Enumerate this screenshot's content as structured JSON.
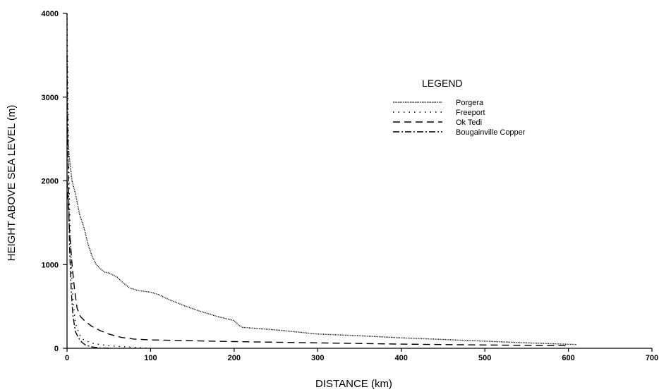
{
  "chart_data": {
    "type": "line",
    "title": "",
    "xlabel": "DISTANCE (km)",
    "ylabel": "HEIGHT ABOVE SEA LEVEL (m)",
    "xlim": [
      0,
      700
    ],
    "ylim": [
      0,
      4000
    ],
    "x_ticks": [
      0,
      100,
      200,
      300,
      400,
      500,
      600,
      700
    ],
    "y_ticks": [
      0,
      1000,
      2000,
      3000,
      4000
    ],
    "grid": false,
    "legend": {
      "title": "LEGEND",
      "placement": "top-right"
    },
    "series": [
      {
        "name": "Porgera",
        "dash": "1.2 1.2",
        "x": [
          0,
          1,
          3,
          6,
          10,
          15,
          20,
          25,
          30,
          35,
          40,
          45,
          50,
          60,
          65,
          70,
          75,
          85,
          100,
          110,
          120,
          140,
          160,
          180,
          200,
          205,
          210,
          250,
          300,
          350,
          400,
          450,
          500,
          550,
          610
        ],
        "y": [
          2700,
          2500,
          2250,
          2000,
          1850,
          1600,
          1450,
          1250,
          1100,
          1000,
          950,
          910,
          900,
          850,
          800,
          760,
          720,
          690,
          670,
          640,
          590,
          510,
          440,
          380,
          330,
          280,
          250,
          220,
          170,
          150,
          125,
          105,
          85,
          65,
          45
        ]
      },
      {
        "name": "Freeport",
        "dash": "1.5 6",
        "x": [
          0,
          1,
          2,
          3,
          5,
          7,
          10,
          15,
          20,
          30,
          50,
          80,
          100
        ],
        "y": [
          4000,
          3000,
          2200,
          1700,
          1000,
          600,
          300,
          160,
          100,
          60,
          30,
          10,
          0
        ]
      },
      {
        "name": "Ok Tedi",
        "dash": "10 6",
        "x": [
          0,
          3,
          6,
          9,
          12,
          16,
          22,
          30,
          40,
          50,
          65,
          80,
          100,
          200,
          300,
          400,
          500,
          600
        ],
        "y": [
          2000,
          1400,
          1000,
          700,
          480,
          380,
          320,
          260,
          210,
          170,
          130,
          110,
          100,
          80,
          65,
          50,
          40,
          30
        ]
      },
      {
        "name": "Bougainville Copper",
        "dash": "9 3 2 3",
        "x": [
          0,
          1,
          2,
          3,
          5,
          7,
          10,
          14,
          18,
          22,
          30,
          40,
          50
        ],
        "y": [
          3500,
          2400,
          1800,
          1200,
          700,
          400,
          200,
          120,
          70,
          40,
          15,
          5,
          0
        ]
      }
    ]
  }
}
